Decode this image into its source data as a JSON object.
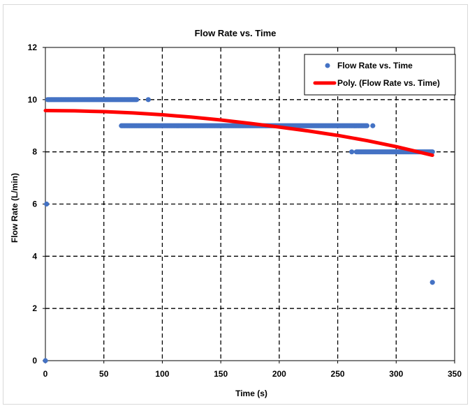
{
  "chart_data": {
    "type": "scatter",
    "title": "Flow Rate vs. Time",
    "xlabel": "Time (s)",
    "ylabel": "Flow Rate (L/min)",
    "xlim": [
      0,
      350
    ],
    "ylim": [
      0,
      12
    ],
    "xticks": [
      0,
      50,
      100,
      150,
      200,
      250,
      300,
      350
    ],
    "yticks": [
      0,
      2,
      4,
      6,
      8,
      10,
      12
    ],
    "grid": "dashed",
    "legend_position": "top-right",
    "colors": {
      "points": "#4472C4",
      "trend": "#FF0000"
    },
    "series": [
      {
        "name": "Flow Rate vs. Time",
        "kind": "points",
        "runs": [
          {
            "x_start": 2,
            "x_end": 78,
            "y": 10
          },
          {
            "x_start": 65,
            "x_end": 275,
            "y": 9
          },
          {
            "x_start": 266,
            "x_end": 331,
            "y": 8
          }
        ],
        "points": [
          {
            "x": 0,
            "y": 0
          },
          {
            "x": 1,
            "y": 6
          },
          {
            "x": 88,
            "y": 10
          },
          {
            "x": 280,
            "y": 9
          },
          {
            "x": 262,
            "y": 8
          },
          {
            "x": 331,
            "y": 3
          }
        ]
      },
      {
        "name": "Poly. (Flow Rate vs. Time)",
        "kind": "trendline",
        "x": [
          0,
          25,
          50,
          75,
          100,
          125,
          150,
          175,
          200,
          225,
          250,
          275,
          300,
          331
        ],
        "y": [
          9.58,
          9.57,
          9.54,
          9.49,
          9.42,
          9.33,
          9.22,
          9.09,
          8.95,
          8.8,
          8.63,
          8.43,
          8.2,
          7.87
        ]
      }
    ]
  }
}
